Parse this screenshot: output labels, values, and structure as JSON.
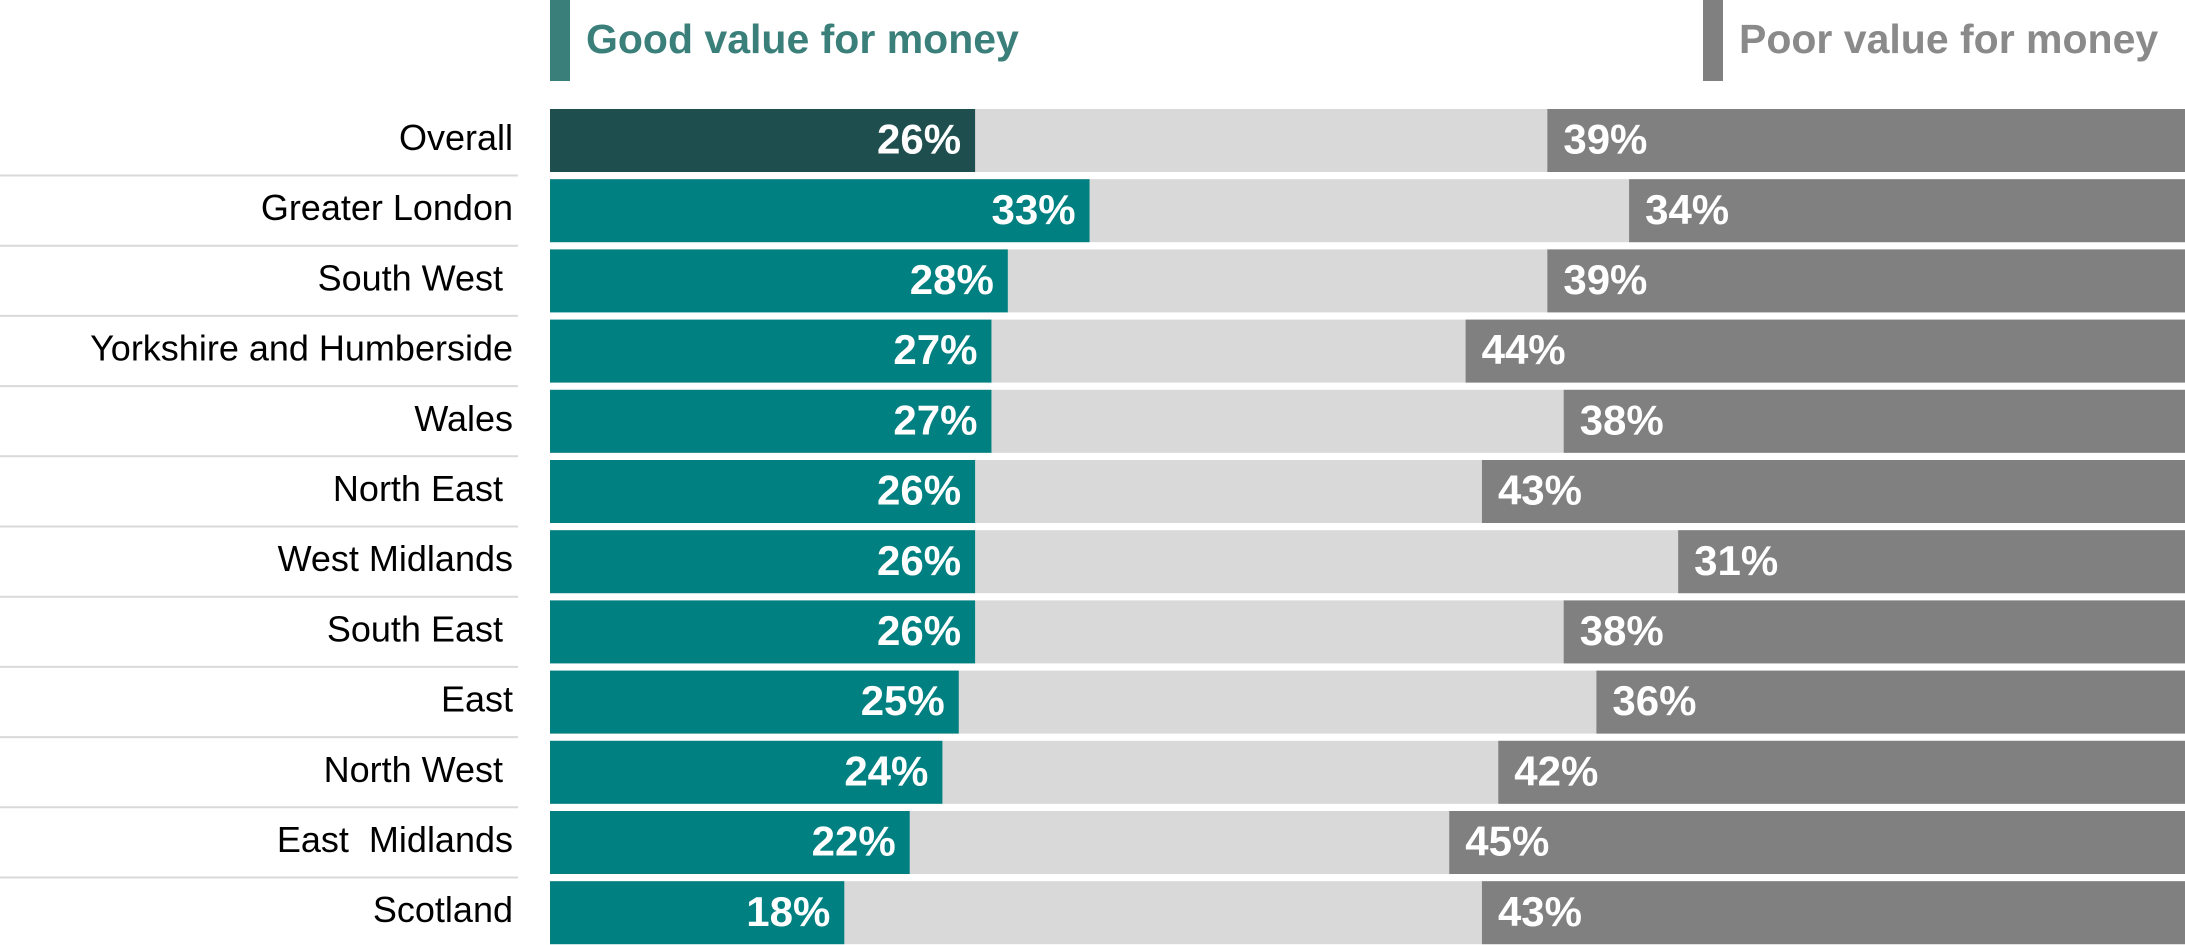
{
  "chart_data": {
    "type": "diverging_bar",
    "categories": [
      "Overall",
      "Greater London",
      "South West ",
      "Yorkshire and Humberside",
      "Wales",
      "North East ",
      "West Midlands",
      "South East ",
      "East",
      "North West ",
      "East  Midlands",
      "Scotland"
    ],
    "xlim": [
      0,
      100
    ],
    "series": [
      {
        "name": "Good value for money",
        "color": "#008080",
        "colors": [
          "#1f4e4e",
          "#008080",
          "#008080",
          "#008080",
          "#008080",
          "#008080",
          "#008080",
          "#008080",
          "#008080",
          "#008080",
          "#008080",
          "#008080"
        ],
        "values": [
          26,
          33,
          28,
          27,
          27,
          26,
          26,
          26,
          25,
          24,
          22,
          18
        ],
        "value_labels": [
          "26%",
          "33%",
          "28%",
          "27%",
          "27%",
          "26%",
          "26%",
          "26%",
          "25%",
          "24%",
          "22%",
          "18%"
        ]
      },
      {
        "name": "Poor value for money",
        "color": "#808080",
        "values": [
          39,
          34,
          39,
          44,
          38,
          43,
          31,
          38,
          36,
          42,
          45,
          43
        ],
        "value_labels": [
          "39%",
          "34%",
          "39%",
          "44%",
          "38%",
          "43%",
          "31%",
          "38%",
          "36%",
          "42%",
          "45%",
          "43%"
        ]
      }
    ]
  }
}
